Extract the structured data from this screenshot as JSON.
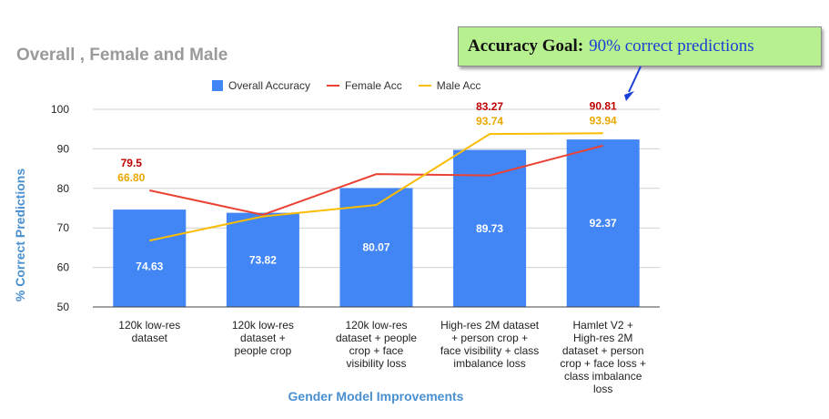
{
  "chart_data": {
    "type": "bar",
    "title": "Overall , Female and Male",
    "xlabel": "Gender Model Improvements",
    "ylabel": "% Correct Predictions",
    "ylim": [
      50,
      100
    ],
    "yticks": [
      "50",
      "60",
      "70",
      "80",
      "90",
      "100"
    ],
    "grid": true,
    "legend_position": "top",
    "categories": [
      "120k low-res dataset",
      "120k low-res dataset + people crop",
      "120k low-res dataset + people crop + face visibility loss",
      "High-res 2M dataset + person crop + face visibility + class imbalance loss",
      "Hamlet V2 + High-res 2M dataset + person crop  + face loss + class imbalance loss"
    ],
    "series": [
      {
        "name": "Overall Accuracy",
        "kind": "bar",
        "color": "#4285f4",
        "values": [
          74.63,
          73.82,
          80.07,
          89.73,
          92.37
        ],
        "labels": [
          "74.63",
          "73.82",
          "80.07",
          "89.73",
          "92.37"
        ]
      },
      {
        "name": "Female Acc",
        "kind": "line",
        "color": "#ea4335",
        "values": [
          79.5,
          73.3,
          83.6,
          83.27,
          90.81
        ],
        "labels": [
          "79.5",
          "",
          "",
          "83.27",
          "90.81"
        ]
      },
      {
        "name": "Male Acc",
        "kind": "line",
        "color": "#fbbc04",
        "values": [
          66.8,
          72.9,
          75.8,
          93.74,
          93.94
        ],
        "labels": [
          "66.80",
          "",
          "",
          "93.74",
          "93.94"
        ]
      }
    ],
    "annotation": {
      "label": "Accuracy Goal:",
      "value": "90% correct predictions",
      "colors": {
        "box": "#b7f08e",
        "label": "#111111",
        "value": "#1a3fd6",
        "arrow": "#1a3fd6"
      }
    }
  }
}
